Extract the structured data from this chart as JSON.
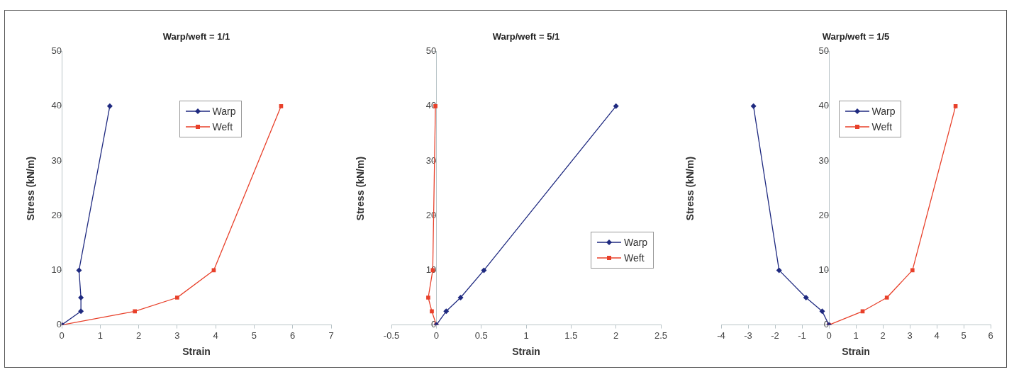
{
  "chart_data": [
    {
      "type": "line",
      "title": "Warp/weft = 1/1",
      "xlabel": "Strain",
      "ylabel": "Stress (kN/m)",
      "xlim": [
        0,
        7
      ],
      "xticks": [
        0,
        1,
        2,
        3,
        4,
        5,
        6,
        7
      ],
      "ylim": [
        0,
        50
      ],
      "yticks": [
        0,
        10,
        20,
        30,
        40,
        50
      ],
      "legend": "top",
      "grid": false,
      "series": [
        {
          "name": "Warp",
          "color": "#1f2a80",
          "marker": "diamond",
          "x": [
            0,
            0.5,
            0.5,
            0.45,
            1.25
          ],
          "values": [
            0,
            2.5,
            5,
            10,
            40
          ]
        },
        {
          "name": "Weft",
          "color": "#e8402a",
          "marker": "square",
          "x": [
            0,
            1.9,
            3.0,
            3.95,
            5.7
          ],
          "values": [
            0,
            2.5,
            5,
            10,
            40
          ]
        }
      ]
    },
    {
      "type": "line",
      "title": "Warp/weft = 5/1",
      "xlabel": "Strain",
      "ylabel": "Stress (kN/m)",
      "xlim": [
        -0.5,
        2.5
      ],
      "xticks": [
        -0.5,
        0,
        0.5,
        1,
        1.5,
        2,
        2.5
      ],
      "ylim": [
        0,
        50
      ],
      "yticks": [
        0,
        10,
        20,
        30,
        40,
        50
      ],
      "legend": "right",
      "grid": false,
      "series": [
        {
          "name": "Warp",
          "color": "#1f2a80",
          "marker": "diamond",
          "x": [
            0,
            0.11,
            0.27,
            0.53,
            2.0
          ],
          "values": [
            0,
            2.5,
            5,
            10,
            40
          ]
        },
        {
          "name": "Weft",
          "color": "#e8402a",
          "marker": "square",
          "x": [
            0,
            -0.05,
            -0.09,
            -0.04,
            -0.01
          ],
          "values": [
            0,
            2.5,
            5,
            10,
            40
          ]
        }
      ]
    },
    {
      "type": "line",
      "title": "Warp/weft = 1/5",
      "xlabel": "Strain",
      "ylabel": "Stress (kN/m)",
      "xlim": [
        -4,
        6
      ],
      "xticks": [
        -4,
        -3,
        -2,
        -1,
        0,
        1,
        2,
        3,
        4,
        5,
        6
      ],
      "ylim": [
        0,
        50
      ],
      "yticks": [
        0,
        10,
        20,
        30,
        40,
        50
      ],
      "legend": "top",
      "grid": false,
      "series": [
        {
          "name": "Warp",
          "color": "#1f2a80",
          "marker": "diamond",
          "x": [
            0,
            -0.25,
            -0.85,
            -1.85,
            -2.8
          ],
          "values": [
            0,
            2.5,
            5,
            10,
            40
          ]
        },
        {
          "name": "Weft",
          "color": "#e8402a",
          "marker": "square",
          "x": [
            0,
            1.25,
            2.15,
            3.1,
            4.7
          ],
          "values": [
            0,
            2.5,
            5,
            10,
            40
          ]
        }
      ]
    }
  ]
}
